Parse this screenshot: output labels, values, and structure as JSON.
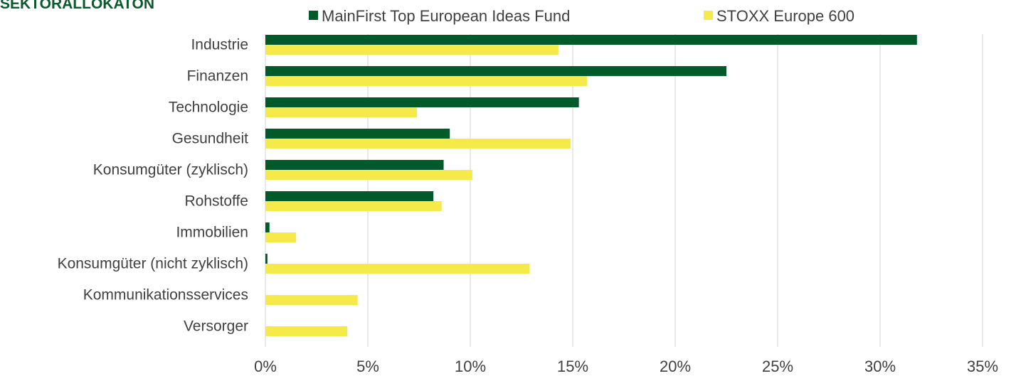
{
  "page_title": "SEKTORALLOKATON",
  "colors": {
    "fund": "#005a2a",
    "benchmark": "#f6e94a"
  },
  "chart_data": {
    "type": "bar",
    "orientation": "horizontal",
    "title": "SEKTORALLOKATON",
    "categories": [
      "Industrie",
      "Finanzen",
      "Technologie",
      "Gesundheit",
      "Konsumgüter (zyklisch)",
      "Rohstoffe",
      "Immobilien",
      "Konsumgüter (nicht zyklisch)",
      "Kommunikationsservices",
      "Versorger"
    ],
    "series": [
      {
        "name": "MainFirst Top European Ideas Fund",
        "color": "#005a2a",
        "values": [
          31.8,
          22.5,
          15.3,
          9.0,
          8.7,
          8.2,
          0.2,
          0.1,
          0.0,
          0.0
        ]
      },
      {
        "name": "STOXX Europe 600",
        "color": "#f6e94a",
        "values": [
          14.3,
          15.7,
          7.4,
          14.9,
          10.1,
          8.6,
          1.5,
          12.9,
          4.5,
          4.0
        ]
      }
    ],
    "xlim": [
      0,
      35
    ],
    "xticks": [
      0,
      5,
      10,
      15,
      20,
      25,
      30,
      35
    ],
    "tick_suffix": "%",
    "grid": "vertical",
    "legend": "top"
  }
}
